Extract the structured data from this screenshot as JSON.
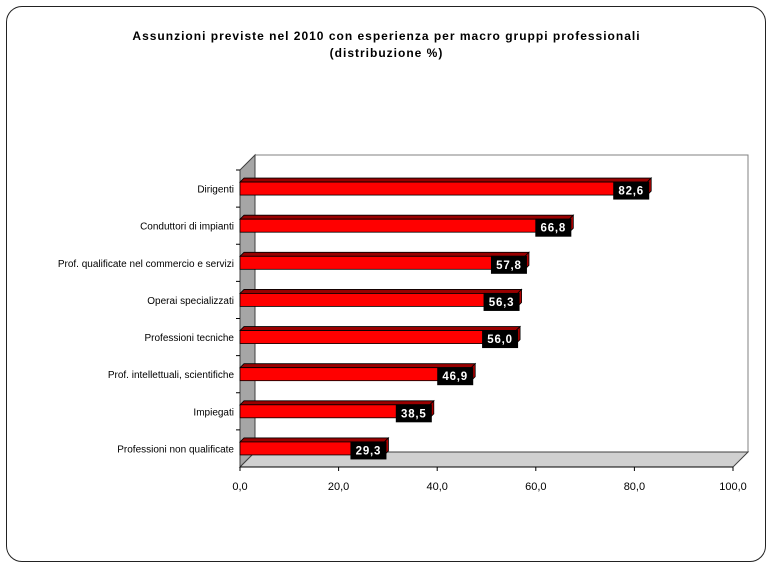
{
  "colors": {
    "bar": "#ff0000",
    "bar_dark": "#990000",
    "bar_cap": "#b00000",
    "label_bg": "#000000",
    "floor": "#a6a6a6",
    "wall": "#ffffff"
  },
  "chart_data": {
    "type": "bar",
    "orientation": "horizontal",
    "title": "Assunzioni previste nel 2010 con esperienza per macro gruppi professionali",
    "subtitle": "(distribuzione %)",
    "categories": [
      "Dirigenti",
      "Conduttori di impianti",
      "Prof. qualificate nel commercio e servizi",
      "Operai specializzati",
      "Professioni tecniche",
      "Prof. intellettuali, scientifiche",
      "Impiegati",
      "Professioni non qualificate"
    ],
    "values": [
      82.6,
      66.8,
      57.8,
      56.3,
      56.0,
      46.9,
      38.5,
      29.3
    ],
    "data_labels": [
      "82,6",
      "66,8",
      "57,8",
      "56,3",
      "56,0",
      "46,9",
      "38,5",
      "29,3"
    ],
    "xlim": [
      0,
      100
    ],
    "xticks": [
      0,
      20,
      40,
      60,
      80,
      100
    ],
    "xtick_labels": [
      "0,0",
      "20,0",
      "40,0",
      "60,0",
      "80,0",
      "100,0"
    ],
    "grid": false,
    "legend": "none",
    "style": "3d"
  }
}
